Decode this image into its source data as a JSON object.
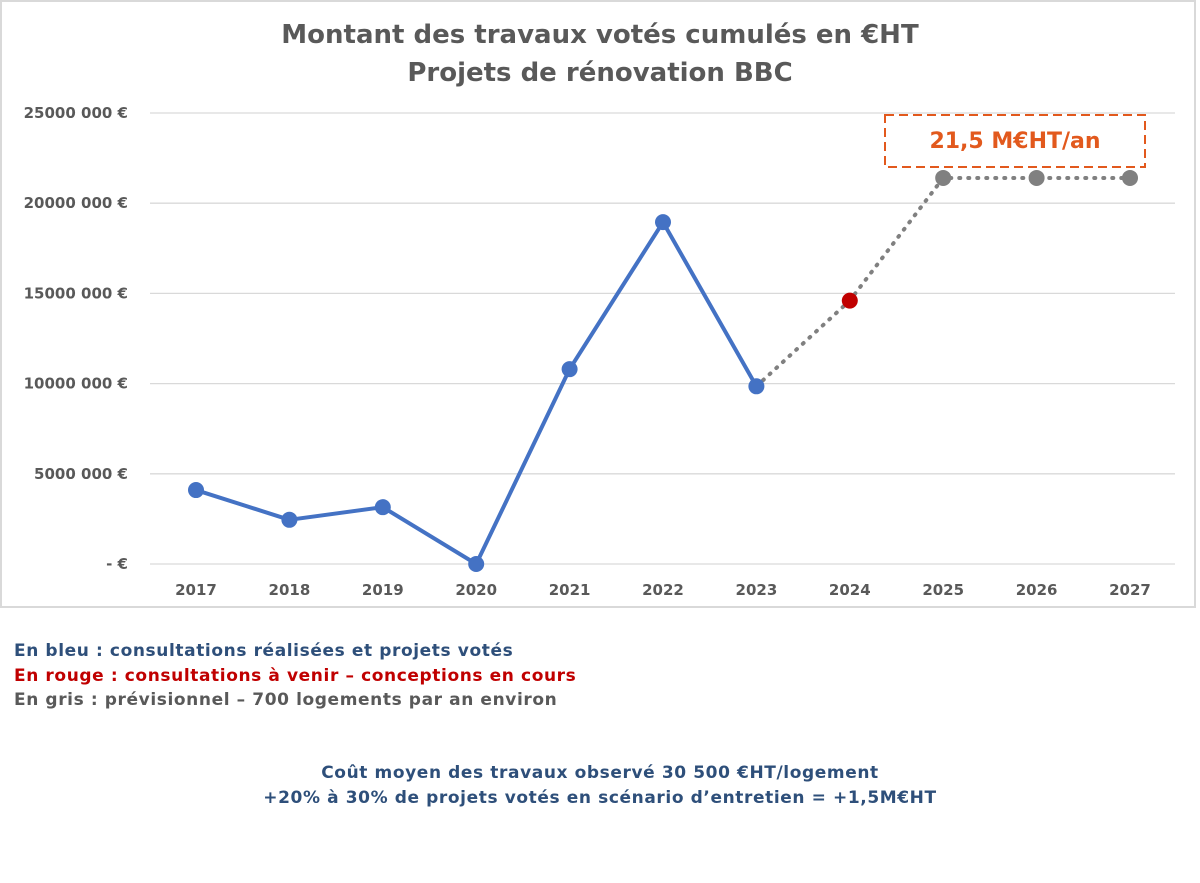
{
  "chart_data": {
    "type": "line",
    "title": "Montant des travaux votés cumulés en €HT",
    "subtitle": "Projets de rénovation BBC",
    "x": [
      "2017",
      "2018",
      "2019",
      "2020",
      "2021",
      "2022",
      "2023",
      "2024",
      "2025",
      "2026",
      "2027"
    ],
    "ylim": [
      0,
      25000000
    ],
    "yticks": [
      0,
      5000000,
      10000000,
      15000000,
      20000000,
      25000000
    ],
    "ytick_labels": [
      "-   €",
      "5000 000 €",
      "10000 000 €",
      "15000 000 €",
      "20000 000 €",
      "25000 000 €"
    ],
    "grid": true,
    "legend": "none",
    "series": [
      {
        "color": "#4472c4",
        "style": "solid",
        "x": [
          "2017",
          "2018",
          "2019",
          "2020",
          "2021",
          "2022",
          "2023"
        ],
        "values": [
          4100000,
          2450000,
          3150000,
          0,
          10800000,
          18950000,
          9850000
        ]
      },
      {
        "color": "#c00000",
        "style": "point",
        "x": [
          "2024"
        ],
        "values": [
          14600000
        ]
      },
      {
        "color": "#808080",
        "style": "dotted",
        "x": [
          "2023",
          "2024",
          "2025",
          "2026",
          "2027"
        ],
        "values": [
          9850000,
          14600000,
          21400000,
          21400000,
          21400000
        ],
        "marker_x": [
          "2025",
          "2026",
          "2027"
        ]
      }
    ],
    "annotations": [
      {
        "text": "21,5 M€HT/an",
        "color": "#e2591d",
        "border": "dashed"
      }
    ]
  },
  "legend_text": {
    "blue": "En bleu : consultations réalisées et projets votés",
    "red": "En rouge : consultations à venir – conceptions en cours",
    "grey": "En gris : prévisionnel – 700 logements par an environ"
  },
  "notes": {
    "line1": "Coût moyen des travaux observé 30 500 €HT/logement",
    "line2": "+20% à 30% de projets votés en scénario d’entretien =  +1,5M€HT"
  },
  "colors": {
    "blue_text": "#2e4f7a",
    "red_text": "#c00000",
    "grey_text": "#595959",
    "note_text": "#2e4f7a"
  }
}
